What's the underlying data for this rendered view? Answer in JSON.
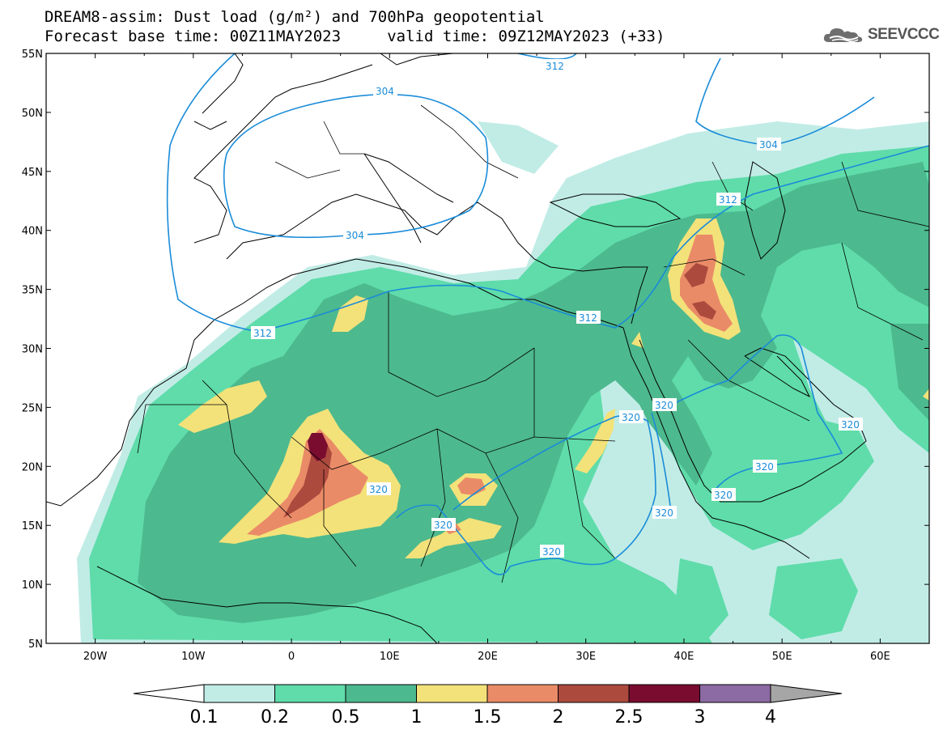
{
  "title": {
    "line1": "DREAM8-assim: Dust load (g/m²) and 700hPa geopotential",
    "line2": "Forecast base time: 00Z11MAY2023     valid time: 09Z12MAY2023 (+33)"
  },
  "logo": {
    "text": "SEEVCCC",
    "icon": "cloud-icon"
  },
  "map": {
    "lon_min": -25,
    "lon_max": 65,
    "lat_min": 5,
    "lat_max": 55,
    "lat_ticks": [
      "5N",
      "10N",
      "15N",
      "20N",
      "25N",
      "30N",
      "35N",
      "40N",
      "45N",
      "50N",
      "55N"
    ],
    "lon_ticks": [
      "20W",
      "10W",
      "0",
      "10E",
      "20E",
      "30E",
      "40E",
      "50E",
      "60E"
    ]
  },
  "contour_labels": [
    "312",
    "304",
    "304",
    "304",
    "312",
    "312",
    "312",
    "320",
    "320",
    "320",
    "320",
    "320",
    "320",
    "320",
    "320",
    "320"
  ],
  "legend": {
    "labels": [
      "0.1",
      "0.2",
      "0.5",
      "1",
      "1.5",
      "2",
      "2.5",
      "3",
      "4"
    ],
    "colors": [
      "#c1ece6",
      "#5fdcaa",
      "#4db98e",
      "#f3e27a",
      "#ea8b68",
      "#ad4a3e",
      "#7a0d2f",
      "#8c6aa4"
    ],
    "under_color": "#ffffff",
    "over_color": "#a6a6a6"
  },
  "colors": {
    "contour": "#1a8cd8",
    "coast": "#000000"
  }
}
